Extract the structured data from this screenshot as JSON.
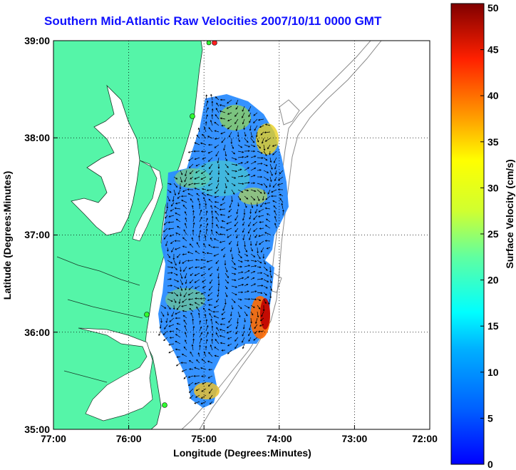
{
  "title": "Southern Mid-Atlantic Raw Velocities 2007/10/11 0000 GMT",
  "map": {
    "xlabel": "Longitude (Degrees:Minutes)",
    "ylabel": "Latitude (Degrees:Minutes)",
    "lon_range": [
      -77,
      -72
    ],
    "lat_range": [
      35,
      39
    ],
    "lon_ticks": [
      "77:00",
      "76:00",
      "75:00",
      "74:00",
      "73:00",
      "72:00"
    ],
    "lat_ticks": [
      "39:00",
      "38:00",
      "37:00",
      "36:00",
      "35:00"
    ],
    "land_color": "#55f5a8",
    "grid": "dotted"
  },
  "colorbar": {
    "label": "Surface Velocity (cm/s)",
    "range": [
      0,
      50
    ],
    "ticks": [
      "0",
      "5",
      "10",
      "15",
      "20",
      "25",
      "30",
      "35",
      "40",
      "45",
      "50"
    ],
    "colormap": "jet"
  }
}
